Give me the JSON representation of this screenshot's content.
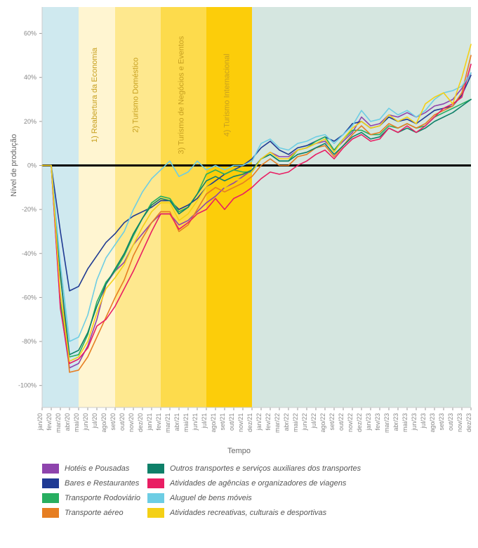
{
  "chart": {
    "type": "line",
    "ylabel": "Nível de produção",
    "xlabel": "Tempo",
    "ylim": [
      -110,
      72
    ],
    "ytick_step": 20,
    "yticks": [
      -100,
      -80,
      -60,
      -40,
      -20,
      0,
      20,
      40,
      60
    ],
    "xticks": [
      "jan/20",
      "fev/20",
      "mar/20",
      "abr/20",
      "mai/20",
      "jun/20",
      "jul/20",
      "ago/20",
      "set/20",
      "out/20",
      "nov/20",
      "dez/20",
      "jan/21",
      "fev/21",
      "mar/21",
      "abr/21",
      "mai/21",
      "jun/21",
      "jul/21",
      "ago/21",
      "set/21",
      "out/21",
      "nov/21",
      "dez/21",
      "jan/22",
      "fev/22",
      "mar/22",
      "abr/22",
      "mai/22",
      "jun/22",
      "jul/22",
      "ago/22",
      "set/22",
      "out/22",
      "nov/22",
      "dez/22",
      "jan/23",
      "fev/23",
      "mar/23",
      "abr/23",
      "mai/23",
      "jun/23",
      "jul/23",
      "ago/23",
      "set/23",
      "out/23",
      "nov/23",
      "dez/23"
    ],
    "background_color": "#ffffff",
    "grid_color": "#e0e0e0",
    "zero_line_color": "#000000",
    "zero_line_width": 3,
    "line_width": 1.6,
    "phases": [
      {
        "from": 0,
        "to": 4,
        "color": "#cfe9ef",
        "label": ""
      },
      {
        "from": 4,
        "to": 8,
        "color": "#fff5d1",
        "label": "1) Reabertura da Economia"
      },
      {
        "from": 8,
        "to": 13,
        "color": "#fee88e",
        "label": "2) Turismo Doméstico"
      },
      {
        "from": 13,
        "to": 18,
        "color": "#fddb4c",
        "label": "3) Turismo de Negócios e Eventos"
      },
      {
        "from": 18,
        "to": 23,
        "color": "#fccd0a",
        "label": "4) Turismo Internacional"
      },
      {
        "from": 23,
        "to": 47,
        "color": "#d5e6e0",
        "label": ""
      }
    ],
    "series": [
      {
        "name": "Hotéis e Pousadas",
        "color": "#8e44ad",
        "values": [
          0,
          0,
          -64,
          -92,
          -90,
          -82,
          -70,
          -54,
          -48,
          -44,
          -36,
          -31,
          -26,
          -22,
          -22,
          -27,
          -25,
          -21,
          -17,
          -14,
          -10,
          -8,
          -5,
          -2,
          3,
          6,
          4,
          4,
          7,
          8,
          10,
          11,
          7,
          11,
          15,
          22,
          18,
          19,
          23,
          22,
          24,
          22,
          24,
          27,
          28,
          30,
          35,
          42
        ]
      },
      {
        "name": "Bares e Restaurantes",
        "color": "#1f3a93",
        "values": [
          0,
          0,
          -30,
          -57,
          -55,
          -47,
          -41,
          -35,
          -31,
          -26,
          -23,
          -21,
          -19,
          -16,
          -16,
          -20,
          -18,
          -15,
          -10,
          -7,
          -4,
          -2,
          0,
          3,
          8,
          11,
          7,
          5,
          8,
          9,
          11,
          13,
          11,
          14,
          19,
          20,
          17,
          18,
          22,
          20,
          21,
          19,
          22,
          25,
          26,
          27,
          32,
          41
        ]
      },
      {
        "name": "Transporte Rodoviário",
        "color": "#27ae60",
        "values": [
          0,
          0,
          -62,
          -87,
          -86,
          -77,
          -62,
          -53,
          -48,
          -41,
          -32,
          -24,
          -17,
          -14,
          -15,
          -21,
          -19,
          -13,
          -4,
          -2,
          -4,
          -2,
          -3,
          -3,
          3,
          5,
          2,
          2,
          7,
          8,
          11,
          13,
          7,
          12,
          16,
          16,
          14,
          14,
          18,
          17,
          19,
          17,
          18,
          22,
          24,
          26,
          28,
          30
        ]
      },
      {
        "name": "Transporte aéreo",
        "color": "#e67e22",
        "values": [
          0,
          0,
          -48,
          -94,
          -93,
          -87,
          -78,
          -69,
          -60,
          -52,
          -41,
          -33,
          -26,
          -21,
          -21,
          -30,
          -27,
          -20,
          -13,
          -10,
          -12,
          -10,
          -8,
          -5,
          0,
          3,
          0,
          0,
          4,
          5,
          8,
          9,
          4,
          9,
          14,
          18,
          14,
          15,
          19,
          17,
          19,
          17,
          19,
          23,
          25,
          27,
          33,
          50
        ]
      },
      {
        "name": "Outros transportes e serviços auxiliares dos transportes",
        "color": "#0e8069",
        "values": [
          0,
          0,
          -50,
          -86,
          -84,
          -76,
          -64,
          -54,
          -47,
          -40,
          -31,
          -24,
          -18,
          -15,
          -16,
          -22,
          -19,
          -13,
          -7,
          -5,
          -7,
          -5,
          -4,
          -2,
          3,
          5,
          2,
          2,
          5,
          6,
          8,
          10,
          5,
          9,
          13,
          15,
          12,
          13,
          17,
          15,
          17,
          15,
          17,
          20,
          22,
          24,
          27,
          30
        ]
      },
      {
        "name": "Atividades de agências e organizadores de viagens",
        "color": "#e91e63",
        "values": [
          0,
          0,
          -65,
          -90,
          -88,
          -83,
          -73,
          -70,
          -64,
          -56,
          -48,
          -39,
          -30,
          -22,
          -22,
          -29,
          -26,
          -22,
          -20,
          -15,
          -20,
          -15,
          -13,
          -10,
          -6,
          -3,
          -4,
          -3,
          0,
          2,
          5,
          7,
          3,
          8,
          12,
          14,
          11,
          12,
          17,
          15,
          18,
          15,
          18,
          22,
          26,
          28,
          31,
          46
        ]
      },
      {
        "name": "Aluguel de bens móveis",
        "color": "#6dcde4",
        "values": [
          0,
          0,
          -45,
          -80,
          -78,
          -68,
          -52,
          -42,
          -36,
          -30,
          -20,
          -12,
          -6,
          -2,
          2,
          -5,
          -3,
          2,
          -2,
          0,
          -2,
          0,
          0,
          2,
          10,
          12,
          8,
          7,
          10,
          11,
          13,
          14,
          10,
          14,
          18,
          25,
          20,
          21,
          26,
          23,
          25,
          22,
          25,
          30,
          33,
          34,
          36,
          42
        ]
      },
      {
        "name": "Atividades recreativas, culturais e desportivas",
        "color": "#f4d016",
        "values": [
          0,
          0,
          -58,
          -89,
          -87,
          -80,
          -67,
          -56,
          -51,
          -45,
          -36,
          -28,
          -21,
          -17,
          -17,
          -25,
          -22,
          -16,
          -10,
          -8,
          -10,
          -7,
          -6,
          -3,
          3,
          6,
          3,
          3,
          7,
          8,
          10,
          12,
          6,
          12,
          17,
          20,
          17,
          18,
          23,
          20,
          22,
          19,
          28,
          31,
          33,
          28,
          40,
          55
        ]
      }
    ]
  },
  "legend_columns": [
    [
      {
        "series_idx": 0
      },
      {
        "series_idx": 1
      },
      {
        "series_idx": 2
      },
      {
        "series_idx": 3
      }
    ],
    [
      {
        "series_idx": 4
      },
      {
        "series_idx": 5
      },
      {
        "series_idx": 6
      },
      {
        "series_idx": 7
      }
    ]
  ]
}
